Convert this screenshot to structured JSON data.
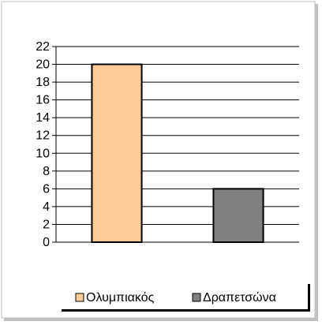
{
  "chart_data": {
    "type": "bar",
    "categories": [
      "Ολυμπιακός",
      "Δραπετσώνα"
    ],
    "values": [
      20,
      6
    ],
    "ylim": [
      0,
      22
    ],
    "yticks": [
      0,
      2,
      4,
      6,
      8,
      10,
      12,
      14,
      16,
      18,
      20,
      22
    ],
    "grid": true,
    "legend_position": "bottom",
    "colors": [
      "#FFCC99",
      "#808080"
    ],
    "legend": [
      {
        "label": "Ολυμπιακός",
        "color": "#FFCC99"
      },
      {
        "label": "Δραπετσώνα",
        "color": "#808080"
      }
    ]
  }
}
